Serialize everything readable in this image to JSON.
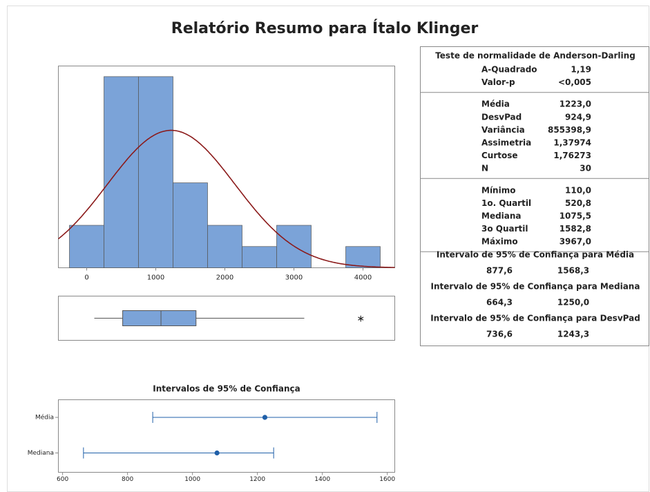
{
  "title": "Relatório Resumo para Ítalo Klinger",
  "chart_data": [
    {
      "type": "histogram",
      "bins": [
        -250,
        250,
        750,
        1250,
        1750,
        2250,
        2750,
        3250,
        3750,
        4250
      ],
      "counts": [
        2,
        9,
        9,
        4,
        2,
        1,
        2,
        0,
        1
      ],
      "color": "#7ba3d8",
      "curve_color": "#8b1a1a",
      "normal_fit": {
        "mean": 1223.0,
        "sd": 924.9,
        "n": 30
      },
      "xlim": [
        -410,
        4460
      ],
      "ylim": [
        0,
        9.5
      ],
      "xticks": [
        0,
        1000,
        2000,
        3000,
        4000
      ]
    },
    {
      "type": "box",
      "min": 110,
      "q1": 520.8,
      "median": 1075.5,
      "q3": 1582.8,
      "whisker_high": 3150,
      "outliers": [
        3967
      ],
      "color": "#7ba3d8",
      "xlim": [
        -410,
        4460
      ]
    },
    {
      "type": "interval",
      "title": "Intervalos de 95% de Confiança",
      "categories": [
        "Média",
        "Mediana"
      ],
      "values": [
        1223.0,
        1075.5
      ],
      "lower": [
        877.6,
        664.3
      ],
      "upper": [
        1568.3,
        1250.0
      ],
      "color": "#1f5fa8",
      "xlim": [
        587,
        1623
      ],
      "xticks": [
        600,
        800,
        1000,
        1200,
        1400,
        1600
      ]
    }
  ],
  "stats": {
    "header": "Teste de normalidade de Anderson-Darling",
    "groups": [
      [
        [
          "A-Quadrado",
          "1,19"
        ],
        [
          "Valor-p",
          "<0,005"
        ]
      ],
      [
        [
          "Média",
          "1223,0"
        ],
        [
          "DesvPad",
          "924,9"
        ],
        [
          "Variância",
          "855398,9"
        ],
        [
          "Assimetria",
          "1,37974"
        ],
        [
          "Curtose",
          "1,76273"
        ],
        [
          "N",
          "30"
        ]
      ],
      [
        [
          "Mínimo",
          "110,0"
        ],
        [
          "1o. Quartil",
          "520,8"
        ],
        [
          "Mediana",
          "1075,5"
        ],
        [
          "3o Quartil",
          "1582,8"
        ],
        [
          "Máximo",
          "3967,0"
        ]
      ]
    ],
    "intervals": [
      {
        "title": "Intervalo de 95% de Confiança para Média",
        "low": "877,6",
        "high": "1568,3"
      },
      {
        "title": "Intervalo de 95% de Confiança  para Mediana",
        "low": "664,3",
        "high": "1250,0"
      },
      {
        "title": "Intervalo de 95% de Confiança  para DesvPad",
        "low": "736,6",
        "high": "1243,3"
      }
    ]
  }
}
